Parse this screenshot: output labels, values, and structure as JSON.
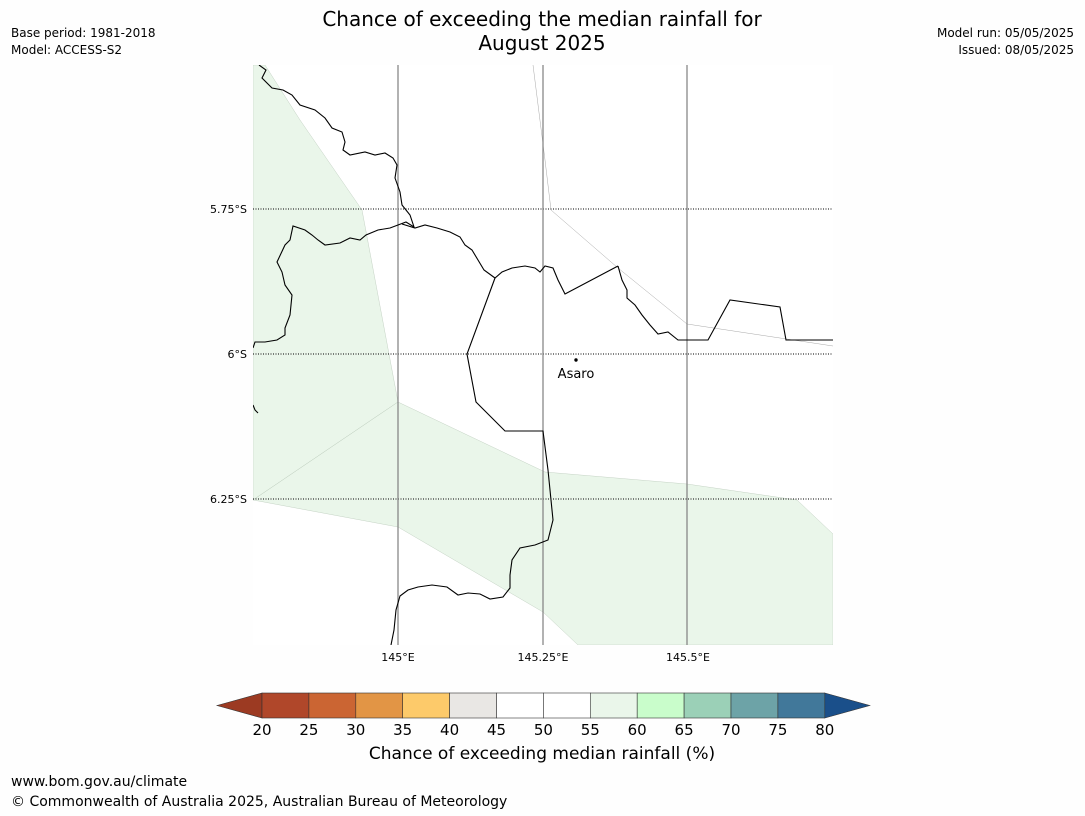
{
  "title_line1": "Chance of exceeding the median rainfall for",
  "title_line2": "August 2025",
  "meta": {
    "base_period": "Base period: 1981-2018",
    "model": "Model: ACCESS-S2",
    "model_run": "Model run: 05/05/2025",
    "issued": "Issued: 08/05/2025"
  },
  "map": {
    "lat_labels": [
      "5.75°S",
      "6°S",
      "6.25°S"
    ],
    "lon_labels": [
      "145°E",
      "145.25°E",
      "145.5°E"
    ],
    "place_name": "Asaro",
    "land_color": "#ffffff",
    "shade_color": "#eaf6ea",
    "border_color": "#000000"
  },
  "colorbar": {
    "label": "Chance of exceeding median rainfall (%)",
    "ticks": [
      "20",
      "25",
      "30",
      "35",
      "40",
      "45",
      "50",
      "55",
      "60",
      "65",
      "70",
      "75",
      "80"
    ],
    "colors": [
      "#9c3a22",
      "#b0472a",
      "#cb6533",
      "#e29545",
      "#fdca6a",
      "#e9e7e4",
      "#ffffff",
      "#ffffff",
      "#eaf6ea",
      "#c9fdcb",
      "#9bd0b7",
      "#6da3a7",
      "#41789a",
      "#1a4f8a"
    ]
  },
  "footer": {
    "url": "www.bom.gov.au/climate",
    "copyright": "© Commonwealth of Australia 2025, Australian Bureau of Meteorology"
  }
}
